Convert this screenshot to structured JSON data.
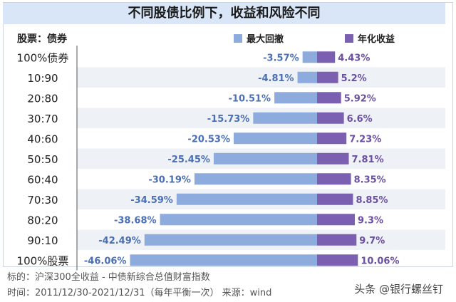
{
  "chart_data": {
    "type": "bar",
    "title": "不同股债比例下，收益和风险不同",
    "category_header": "股票：债券",
    "categories": [
      "100%债券",
      "10:90",
      "20:80",
      "30:70",
      "40:60",
      "50:50",
      "60:40",
      "70:30",
      "80:20",
      "90:10",
      "100%股票"
    ],
    "series": [
      {
        "name": "最大回撤",
        "color": "#8eabdd",
        "values": [
          -3.57,
          -4.81,
          -10.51,
          -15.73,
          -20.53,
          -25.45,
          -30.19,
          -34.59,
          -38.68,
          -42.49,
          -46.06
        ],
        "labels": [
          "-3.57%",
          "-4.81%",
          "-10.51%",
          "-15.73%",
          "-20.53%",
          "-25.45%",
          "-30.19%",
          "-34.59%",
          "-38.68%",
          "-42.49%",
          "-46.06%"
        ]
      },
      {
        "name": "年化收益",
        "color": "#7b5fb0",
        "values": [
          4.43,
          5.2,
          5.92,
          6.6,
          7.23,
          7.81,
          8.35,
          8.85,
          9.3,
          9.7,
          10.06
        ],
        "labels": [
          "4.43%",
          "5.2%",
          "5.92%",
          "6.6%",
          "7.23%",
          "7.81%",
          "8.35%",
          "8.85%",
          "9.3%",
          "9.7%",
          "10.06%"
        ]
      }
    ],
    "label_colors": {
      "negative": "#4a6fb5",
      "positive": "#6a4fa3"
    },
    "legend": "top-right",
    "grid": false
  },
  "notes": {
    "source_index": "标的：沪深300全收益 - 中债新综合总值财富指数",
    "period": "时间：2011/12/30-2021/12/31（每年平衡一次）    来源：wind"
  },
  "watermark": "头条 @银行螺丝钉"
}
